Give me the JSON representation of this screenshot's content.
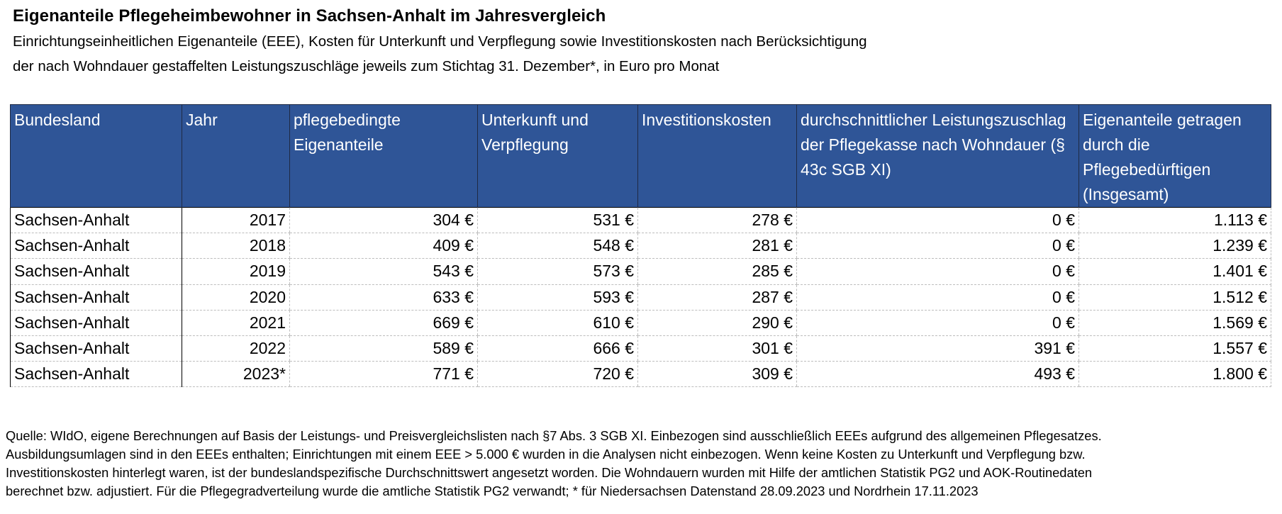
{
  "title": "Eigenanteile Pflegeheimbewohner in Sachsen-Anhalt im Jahresvergleich",
  "subtitle_lines": [
    "Einrichtungseinheitlichen Eigenanteile (EEE), Kosten für Unterkunft und Verpflegung sowie Investitionskosten nach Berücksichtigung",
    "der nach Wohndauer gestaffelten Leistungszuschläge jeweils zum Stichtag 31. Dezember*, in Euro pro Monat"
  ],
  "table": {
    "headers": [
      "Bundesland",
      "Jahr",
      "pflegebedingte Eigenanteile",
      "Unterkunft und Verpflegung",
      "Investitionskosten",
      "durchschnittlicher Leistungszuschlag der Pflegekasse nach Wohndauer (§ 43c SGB XI)",
      "Eigenanteile getragen durch die Pflegebedürftigen (Insgesamt)"
    ],
    "rows": [
      [
        "Sachsen-Anhalt",
        "2017",
        "304 €",
        "531 €",
        "278 €",
        "0 €",
        "1.113 €"
      ],
      [
        "Sachsen-Anhalt",
        "2018",
        "409 €",
        "548 €",
        "281 €",
        "0 €",
        "1.239 €"
      ],
      [
        "Sachsen-Anhalt",
        "2019",
        "543 €",
        "573 €",
        "285 €",
        "0 €",
        "1.401 €"
      ],
      [
        "Sachsen-Anhalt",
        "2020",
        "633 €",
        "593 €",
        "287 €",
        "0 €",
        "1.512 €"
      ],
      [
        "Sachsen-Anhalt",
        "2021",
        "669 €",
        "610 €",
        "290 €",
        "0 €",
        "1.569 €"
      ],
      [
        "Sachsen-Anhalt",
        "2022",
        "589 €",
        "666 €",
        "301 €",
        "391 €",
        "1.557 €"
      ],
      [
        "Sachsen-Anhalt",
        "2023*",
        "771 €",
        "720 €",
        "309 €",
        "493 €",
        "1.800 €"
      ]
    ]
  },
  "footnote_lines": [
    "Quelle: WIdO, eigene Berechnungen auf Basis der Leistungs- und Preisvergleichslisten nach §7 Abs. 3 SGB XI. Einbezogen sind ausschließlich EEEs aufgrund des allgemeinen Pflegesatzes.",
    "Ausbildungsumlagen sind in den EEEs enthalten; Einrichtungen mit einem EEE > 5.000 € wurden in die Analysen nicht einbezogen. Wenn keine Kosten zu Unterkunft und Verpflegung bzw.",
    "Investitionskosten hinterlegt waren, ist der bundeslandspezifische Durchschnittswert angesetzt worden. Die Wohndauern wurden mit Hilfe der amtlichen Statistik PG2 und AOK-Routinedaten",
    "berechnet bzw. adjustiert. Für die Pflegegradverteilung wurde die amtliche Statistik PG2 verwandt; * für Niedersachsen Datenstand 28.09.2023 und Nordrhein 17.11.2023"
  ],
  "colors": {
    "header_bg": "#2F5597",
    "header_text": "#FFFFFF"
  }
}
